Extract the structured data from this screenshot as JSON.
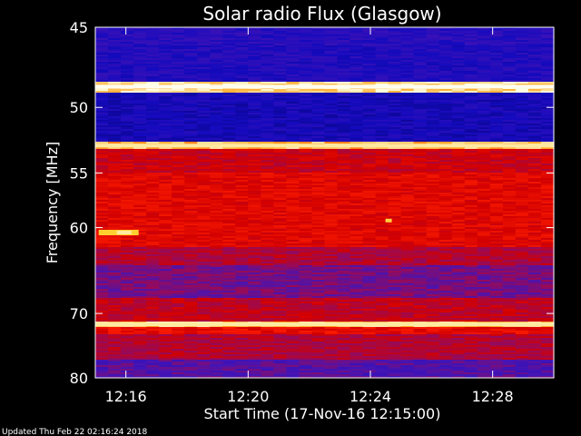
{
  "chart_data": {
    "type": "heatmap",
    "title": "Solar radio Flux (Glasgow)",
    "xlabel": "Start Time (17-Nov-16 12:15:00)",
    "ylabel": "Frequency [MHz]",
    "x_range": [
      "12:15:00",
      "12:30:00"
    ],
    "y_range": [
      45,
      80
    ],
    "x_ticks": [
      "12:16",
      "12:20",
      "12:24",
      "12:28"
    ],
    "y_ticks": [
      45,
      50,
      55,
      60,
      70,
      80
    ],
    "y_scale": "reciprocal",
    "colormap": "blue-red-yellow-white",
    "features": [
      {
        "type": "band",
        "freq_mhz": 48.6,
        "level": "white"
      },
      {
        "type": "band",
        "freq_mhz": 52.8,
        "level": "yellow-white"
      },
      {
        "type": "band",
        "freq_mhz": 71.5,
        "level": "yellow-white"
      },
      {
        "type": "burst",
        "time": "12:16",
        "freq_mhz": 60.5,
        "level": "yellow-white"
      },
      {
        "type": "spot",
        "time": "12:24:35",
        "freq_mhz": 59.3,
        "level": "yellow"
      }
    ]
  },
  "footer": "Updated Thu Feb 22 02:16:24 2018"
}
